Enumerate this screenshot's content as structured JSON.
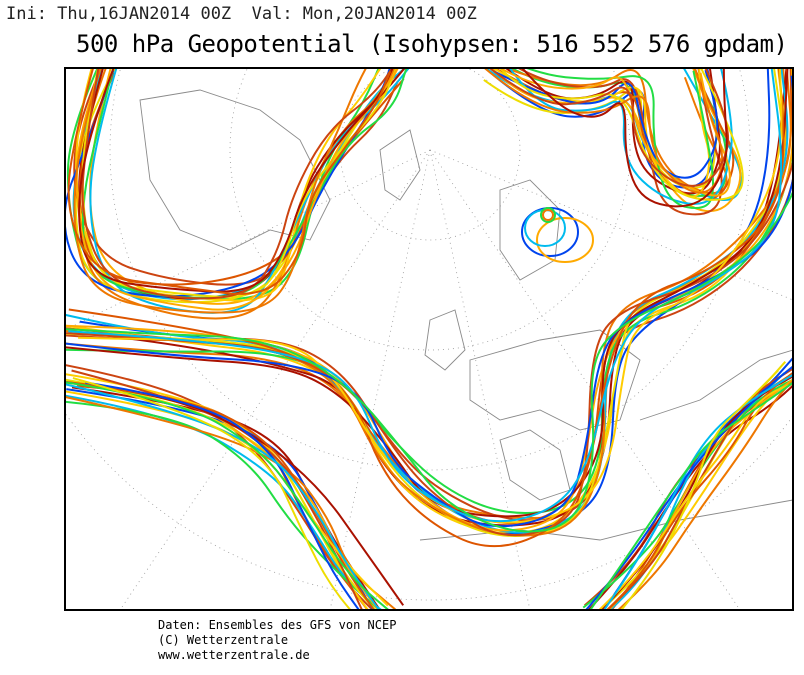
{
  "header": {
    "run": "Ini: Thu,16JAN2014 00Z  Val: Mon,20JAN2014 00Z",
    "title": "500 hPa Geopotential (Isohypsen: 516 552 576 gpdam)"
  },
  "footer": {
    "lines": [
      "Daten: Ensembles des GFS von NCEP",
      "(C) Wetterzentrale",
      "www.wetterzentrale.de"
    ]
  }
}
